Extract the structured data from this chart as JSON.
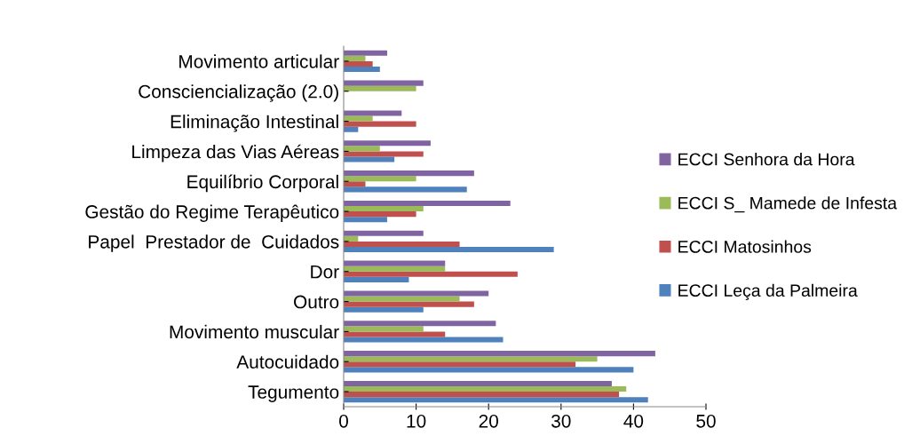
{
  "chart_data": {
    "type": "bar",
    "orientation": "horizontal",
    "categories": [
      "Movimento articular",
      "Consciencialização (2.0)",
      "Eliminação Intestinal",
      "Limpeza das Vias Aéreas",
      "Equilíbrio Corporal",
      "Gestão do Regime Terapêutico",
      "Papel  Prestador de  Cuidados",
      "Dor",
      "Outro",
      "Movimento muscular",
      "Autocuidado",
      "Tegumento"
    ],
    "series": [
      {
        "name": "ECCI Leça da Palmeira",
        "color": "#4f81bd",
        "values": [
          5,
          null,
          2,
          7,
          17,
          6,
          29,
          9,
          11,
          22,
          40,
          42
        ]
      },
      {
        "name": "ECCI Matosinhos",
        "color": "#c0504d",
        "values": [
          4,
          null,
          10,
          11,
          3,
          10,
          16,
          24,
          18,
          14,
          32,
          38
        ]
      },
      {
        "name": "ECCI S_ Mamede de Infesta",
        "color": "#9bbb59",
        "values": [
          3,
          10,
          4,
          5,
          10,
          11,
          2,
          14,
          16,
          11,
          35,
          39
        ]
      },
      {
        "name": "ECCI Senhora da Hora",
        "color": "#8064a2",
        "values": [
          6,
          11,
          8,
          12,
          18,
          23,
          11,
          14,
          20,
          21,
          43,
          37
        ]
      }
    ],
    "xlim": [
      0,
      50
    ],
    "xticks": [
      0,
      10,
      20,
      30,
      40,
      50
    ],
    "grid": false,
    "legend": "right"
  }
}
